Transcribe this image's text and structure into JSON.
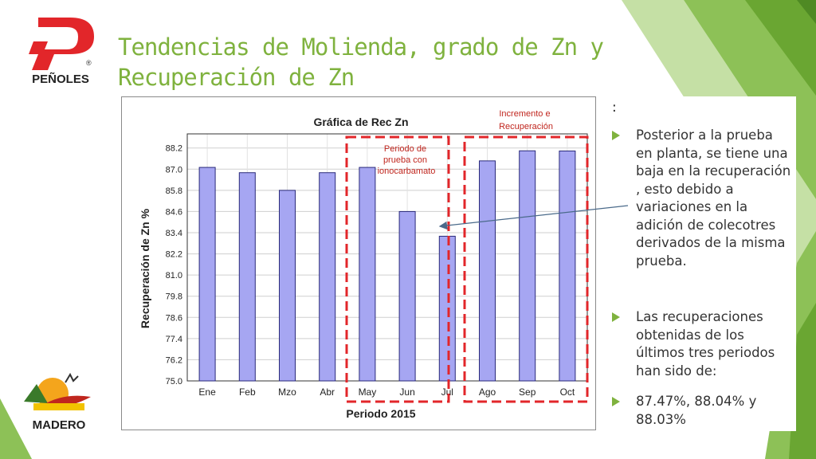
{
  "title": "Tendencias de Molienda, grado de Zn y Recuperación de Zn",
  "logos": {
    "top_left": "PEÑOLES",
    "top_left_mark": "®",
    "bottom_left": "MADERO"
  },
  "colors": {
    "accent_green": "#7fb23e",
    "bar_fill": "#a6a6f2",
    "bar_stroke": "#2a2a7a",
    "highlight_red": "#e2262a",
    "annotation_red": "#c0261e"
  },
  "chart_data": {
    "type": "bar",
    "title": "Gráfica de Rec Zn",
    "xlabel": "Periodo 2015",
    "ylabel": "Recuperación de Zn %",
    "categories": [
      "Ene",
      "Feb",
      "Mzo",
      "Abr",
      "May",
      "Jun",
      "Jul",
      "Ago",
      "Sep",
      "Oct"
    ],
    "values": [
      87.1,
      86.8,
      85.8,
      86.8,
      87.1,
      84.6,
      83.2,
      87.47,
      88.04,
      88.03
    ],
    "ylim": [
      75.0,
      89.0
    ],
    "yticks": [
      "75.0",
      "76.2",
      "77.4",
      "78.6",
      "79.8",
      "81.0",
      "82.2",
      "83.4",
      "84.6",
      "85.8",
      "87.0",
      "88.2"
    ],
    "grid": true,
    "legend": "none",
    "annotations": {
      "test_period": "Periodo de prueba con Tionocarbamato",
      "increase": "Incremento en Recuperación"
    }
  },
  "side_panel": {
    "colon": ":",
    "bullets": [
      "Posterior a la prueba en planta, se tiene una baja en la recuperación , esto debido a variaciones en la adición de colecotres derivados de la misma prueba.",
      "Las recuperaciones obtenidas de los últimos tres periodos han sido de:",
      "87.47%, 88.04% y 88.03%"
    ]
  }
}
